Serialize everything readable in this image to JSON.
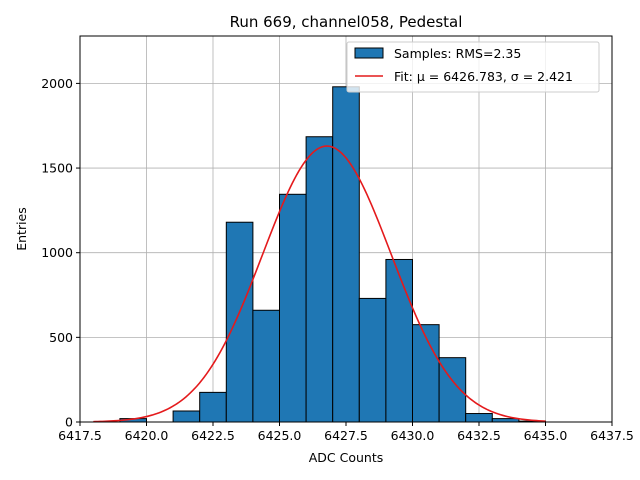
{
  "chart_data": {
    "type": "bar",
    "title": "Run 669, channel058, Pedestal",
    "xlabel": "ADC Counts",
    "ylabel": "Entries",
    "xlim": [
      6417.5,
      6437.5
    ],
    "ylim": [
      0,
      2280
    ],
    "grid": true,
    "legend_placement": "top-right",
    "x_ticks": [
      6417.5,
      6420.0,
      6422.5,
      6425.0,
      6427.5,
      6430.0,
      6432.5,
      6435.0,
      6437.5
    ],
    "x_tick_labels": [
      "6417.5",
      "6420.0",
      "6422.5",
      "6425.0",
      "6427.5",
      "6430.0",
      "6432.5",
      "6435.0",
      "6437.5"
    ],
    "y_ticks": [
      0,
      500,
      1000,
      1500,
      2000
    ],
    "y_tick_labels": [
      "0",
      "500",
      "1000",
      "1500",
      "2000"
    ],
    "histogram": {
      "name": "Samples: RMS=2.35",
      "color": "#1f77b4",
      "edge_color": "#000000",
      "bin_edges": [
        6419,
        6420,
        6421,
        6422,
        6423,
        6424,
        6425,
        6426,
        6427,
        6428,
        6429,
        6430,
        6431,
        6432,
        6433,
        6434,
        6435
      ],
      "counts": [
        20,
        0,
        65,
        175,
        1180,
        660,
        1345,
        1685,
        1980,
        730,
        960,
        575,
        380,
        50,
        20,
        5
      ]
    },
    "fit": {
      "name": "Fit: μ = 6426.783, σ = 2.421",
      "color": "#e41a1c",
      "mu": 6426.783,
      "sigma": 2.421,
      "amplitude": 1630,
      "x_range": [
        6418,
        6435
      ]
    }
  }
}
